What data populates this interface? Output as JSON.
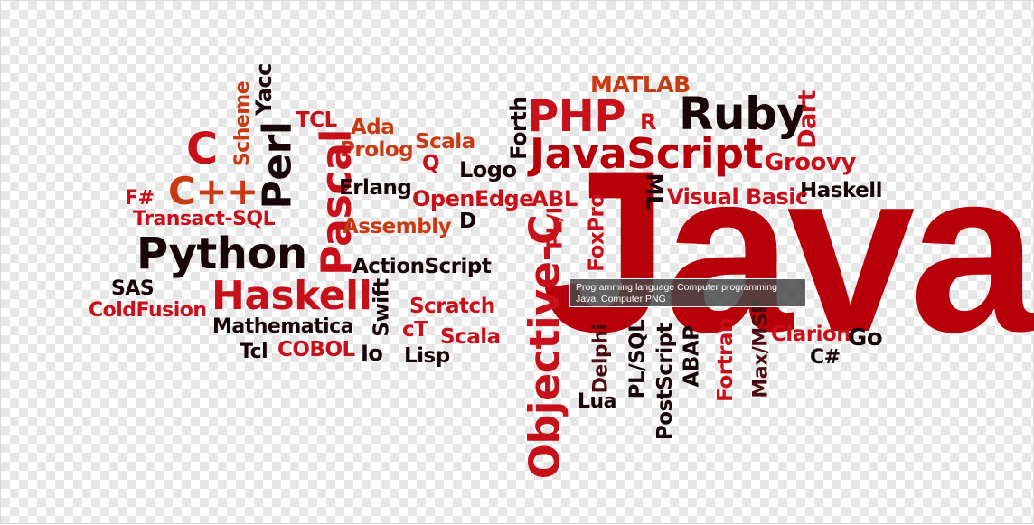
{
  "tooltip": {
    "text": "Programming language Computer programming Java, Computer PNG"
  },
  "colors": {
    "dark_red": "#b8000a",
    "red": "#d7101e",
    "orange_red": "#c83a12",
    "near_black": "#1a0508",
    "maroon": "#4a0c10"
  },
  "words": {
    "java": "Java",
    "matlab": "MATLAB",
    "php": "PHP",
    "ruby": "Ruby",
    "dart": "Dart",
    "r": "R",
    "forth": "Forth",
    "javascript": "JavaScript",
    "groovy": "Groovy",
    "logo": "Logo",
    "yacc": "Yacc",
    "scheme": "Scheme",
    "c": "C",
    "perl": "Perl",
    "tcl_upper": "TCL",
    "ada": "Ada",
    "prolog": "Prolog",
    "scala_top": "Scala",
    "q": "Q",
    "pascal": "Pascal",
    "fsharp": "F#",
    "cpp": "C++",
    "erlang": "Erlang",
    "openedge": "OpenEdge",
    "abl": "ABL",
    "ml": "ML",
    "visual_basic": "Visual Basic",
    "haskell_right": "Haskell",
    "transact_sql": "Transact-SQL",
    "assembly": "Assembly",
    "d": "D",
    "pl1": "PL/I",
    "foxpro": "FoxPro",
    "python": "Python",
    "actionscript": "ActionScript",
    "objective_c": "Objective-C",
    "sas": "SAS",
    "haskell_big": "Haskell",
    "swift": "Swift",
    "coldfusion": "ColdFusion",
    "scratch": "Scratch",
    "mathematica": "Mathematica",
    "ct": "cT",
    "scala_bottom": "Scala",
    "tcl_lower": "Tcl",
    "cobol": "COBOL",
    "io": "Io",
    "lisp": "Lisp",
    "delphi": "Delphi",
    "lua": "Lua",
    "plsql": "PL/SQL",
    "postscript": "PostScript",
    "abap": "ABAP",
    "fortran": "Fortran",
    "maxmsp": "Max/MSP",
    "clarion": "Clarion",
    "go": "Go",
    "csharp": "C#"
  }
}
